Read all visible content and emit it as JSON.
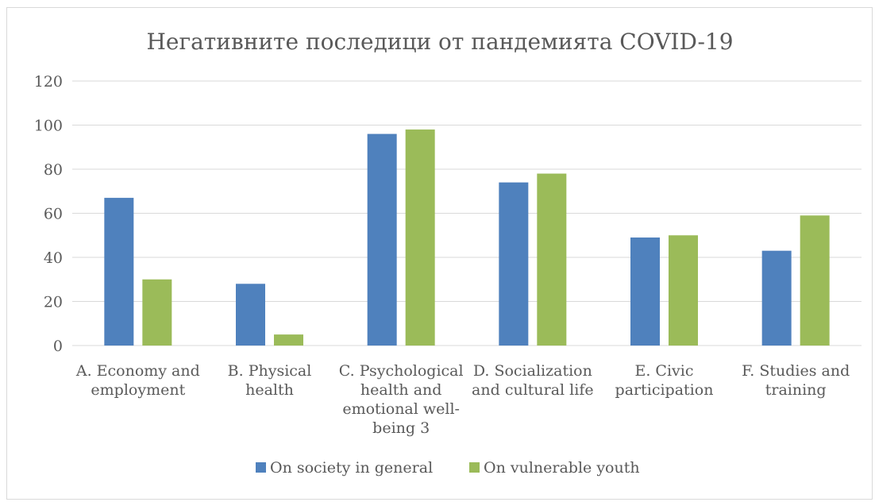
{
  "chart_data": {
    "type": "bar",
    "title": "Негативните последици от пандемията COVID-19",
    "categories": [
      [
        "A. Economy and",
        "employment"
      ],
      [
        "B. Physical",
        "health"
      ],
      [
        "C. Psychological",
        "health and",
        "emotional well-",
        "being 3"
      ],
      [
        "D.  Socialization",
        "and cultural life"
      ],
      [
        "E. Civic",
        "participation"
      ],
      [
        "F. Studies and",
        "training"
      ]
    ],
    "series": [
      {
        "name": "On society in general",
        "color": "#4f81bd",
        "values": [
          67,
          28,
          96,
          74,
          49,
          43
        ]
      },
      {
        "name": "On vulnerable youth",
        "color": "#9bbb59",
        "values": [
          30,
          5,
          98,
          78,
          50,
          59
        ]
      }
    ],
    "ylim": [
      0,
      120
    ],
    "yticks": [
      0,
      20,
      40,
      60,
      80,
      100,
      120
    ],
    "grid": true,
    "legend_position": "bottom"
  }
}
